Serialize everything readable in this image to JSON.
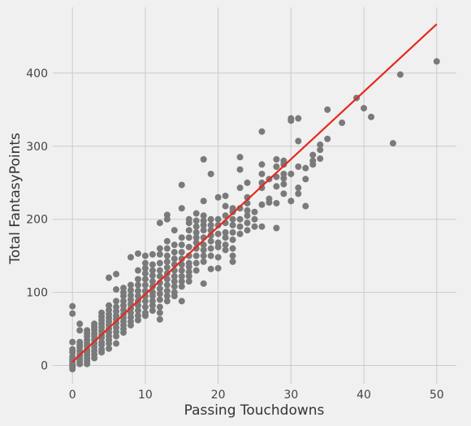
{
  "chart_data": {
    "type": "scatter",
    "title": "",
    "xlabel": "Passing Touchdowns",
    "ylabel": "Total FantasyPoints",
    "xlim": [
      -2.7,
      52.7
    ],
    "ylim": [
      -25,
      490
    ],
    "xticks": [
      0,
      10,
      20,
      30,
      40,
      50
    ],
    "yticks": [
      0,
      100,
      200,
      300,
      400
    ],
    "grid": true,
    "legend": "none",
    "colors": {
      "background": "#f0f0f0",
      "grid": "#cbcbcb",
      "points": "#7a7a7a",
      "fit_line": "#e5281e"
    },
    "fit_line": {
      "x": [
        0,
        50
      ],
      "y": [
        5,
        467
      ]
    },
    "points": [
      [
        0,
        -5
      ],
      [
        0,
        -2
      ],
      [
        0,
        0
      ],
      [
        0,
        2
      ],
      [
        0,
        5
      ],
      [
        0,
        8
      ],
      [
        0,
        12
      ],
      [
        0,
        18
      ],
      [
        0,
        22
      ],
      [
        0,
        32
      ],
      [
        0,
        71
      ],
      [
        0,
        81
      ],
      [
        1,
        2
      ],
      [
        1,
        5
      ],
      [
        1,
        8
      ],
      [
        1,
        12
      ],
      [
        1,
        15
      ],
      [
        1,
        20
      ],
      [
        1,
        25
      ],
      [
        1,
        28
      ],
      [
        1,
        32
      ],
      [
        1,
        48
      ],
      [
        1,
        57
      ],
      [
        2,
        2
      ],
      [
        2,
        6
      ],
      [
        2,
        10
      ],
      [
        2,
        14
      ],
      [
        2,
        18
      ],
      [
        2,
        22
      ],
      [
        2,
        27
      ],
      [
        2,
        31
      ],
      [
        2,
        35
      ],
      [
        2,
        40
      ],
      [
        2,
        44
      ],
      [
        2,
        48
      ],
      [
        3,
        10
      ],
      [
        3,
        15
      ],
      [
        3,
        20
      ],
      [
        3,
        25
      ],
      [
        3,
        30
      ],
      [
        3,
        35
      ],
      [
        3,
        40
      ],
      [
        3,
        44
      ],
      [
        3,
        49
      ],
      [
        3,
        53
      ],
      [
        3,
        57
      ],
      [
        4,
        18
      ],
      [
        4,
        22
      ],
      [
        4,
        28
      ],
      [
        4,
        32
      ],
      [
        4,
        38
      ],
      [
        4,
        42
      ],
      [
        4,
        47
      ],
      [
        4,
        52
      ],
      [
        4,
        57
      ],
      [
        4,
        62
      ],
      [
        4,
        67
      ],
      [
        4,
        72
      ],
      [
        5,
        23
      ],
      [
        5,
        30
      ],
      [
        5,
        35
      ],
      [
        5,
        40
      ],
      [
        5,
        45
      ],
      [
        5,
        50
      ],
      [
        5,
        55
      ],
      [
        5,
        60
      ],
      [
        5,
        65
      ],
      [
        5,
        70
      ],
      [
        5,
        76
      ],
      [
        5,
        82
      ],
      [
        5,
        120
      ],
      [
        6,
        30
      ],
      [
        6,
        40
      ],
      [
        6,
        46
      ],
      [
        6,
        52
      ],
      [
        6,
        58
      ],
      [
        6,
        63
      ],
      [
        6,
        68
      ],
      [
        6,
        74
      ],
      [
        6,
        80
      ],
      [
        6,
        88
      ],
      [
        6,
        104
      ],
      [
        6,
        125
      ],
      [
        7,
        45
      ],
      [
        7,
        50
      ],
      [
        7,
        55
      ],
      [
        7,
        60
      ],
      [
        7,
        65
      ],
      [
        7,
        70
      ],
      [
        7,
        76
      ],
      [
        7,
        82
      ],
      [
        7,
        88
      ],
      [
        7,
        95
      ],
      [
        7,
        100
      ],
      [
        7,
        106
      ],
      [
        8,
        55
      ],
      [
        8,
        60
      ],
      [
        8,
        66
      ],
      [
        8,
        72
      ],
      [
        8,
        78
      ],
      [
        8,
        84
      ],
      [
        8,
        90
      ],
      [
        8,
        96
      ],
      [
        8,
        103
      ],
      [
        8,
        110
      ],
      [
        8,
        148
      ],
      [
        9,
        62
      ],
      [
        9,
        68
      ],
      [
        9,
        75
      ],
      [
        9,
        82
      ],
      [
        9,
        88
      ],
      [
        9,
        95
      ],
      [
        9,
        102
      ],
      [
        9,
        110
      ],
      [
        9,
        118
      ],
      [
        9,
        130
      ],
      [
        9,
        153
      ],
      [
        10,
        68
      ],
      [
        10,
        72
      ],
      [
        10,
        80
      ],
      [
        10,
        88
      ],
      [
        10,
        95
      ],
      [
        10,
        102
      ],
      [
        10,
        110
      ],
      [
        10,
        118
      ],
      [
        10,
        126
      ],
      [
        10,
        133
      ],
      [
        10,
        140
      ],
      [
        10,
        150
      ],
      [
        11,
        75
      ],
      [
        11,
        82
      ],
      [
        11,
        88
      ],
      [
        11,
        95
      ],
      [
        11,
        100
      ],
      [
        11,
        108
      ],
      [
        11,
        115
      ],
      [
        11,
        123
      ],
      [
        11,
        130
      ],
      [
        11,
        138
      ],
      [
        11,
        152
      ],
      [
        12,
        63
      ],
      [
        12,
        72
      ],
      [
        12,
        80
      ],
      [
        12,
        90
      ],
      [
        12,
        98
      ],
      [
        12,
        105
      ],
      [
        12,
        113
      ],
      [
        12,
        122
      ],
      [
        12,
        130
      ],
      [
        12,
        140
      ],
      [
        12,
        152
      ],
      [
        12,
        160
      ],
      [
        12,
        195
      ],
      [
        13,
        88
      ],
      [
        13,
        95
      ],
      [
        13,
        102
      ],
      [
        13,
        110
      ],
      [
        13,
        118
      ],
      [
        13,
        126
      ],
      [
        13,
        134
      ],
      [
        13,
        142
      ],
      [
        13,
        150
      ],
      [
        13,
        160
      ],
      [
        13,
        170
      ],
      [
        13,
        200
      ],
      [
        13,
        206
      ],
      [
        14,
        95
      ],
      [
        14,
        100
      ],
      [
        14,
        108
      ],
      [
        14,
        115
      ],
      [
        14,
        122
      ],
      [
        14,
        130
      ],
      [
        14,
        138
      ],
      [
        14,
        146
      ],
      [
        14,
        155
      ],
      [
        14,
        165
      ],
      [
        14,
        185
      ],
      [
        15,
        88
      ],
      [
        15,
        108
      ],
      [
        15,
        115
      ],
      [
        15,
        122
      ],
      [
        15,
        130
      ],
      [
        15,
        138
      ],
      [
        15,
        146
      ],
      [
        15,
        155
      ],
      [
        15,
        165
      ],
      [
        15,
        175
      ],
      [
        15,
        215
      ],
      [
        15,
        247
      ],
      [
        16,
        115
      ],
      [
        16,
        122
      ],
      [
        16,
        128
      ],
      [
        16,
        135
      ],
      [
        16,
        140
      ],
      [
        16,
        150
      ],
      [
        16,
        162
      ],
      [
        16,
        175
      ],
      [
        16,
        185
      ],
      [
        16,
        195
      ],
      [
        16,
        200
      ],
      [
        17,
        130
      ],
      [
        17,
        140
      ],
      [
        17,
        150
      ],
      [
        17,
        160
      ],
      [
        17,
        168
      ],
      [
        17,
        175
      ],
      [
        17,
        182
      ],
      [
        17,
        190
      ],
      [
        17,
        198
      ],
      [
        17,
        208
      ],
      [
        18,
        112
      ],
      [
        18,
        142
      ],
      [
        18,
        150
      ],
      [
        18,
        158
      ],
      [
        18,
        165
      ],
      [
        18,
        175
      ],
      [
        18,
        185
      ],
      [
        18,
        192
      ],
      [
        18,
        198
      ],
      [
        18,
        205
      ],
      [
        18,
        225
      ],
      [
        18,
        282
      ],
      [
        19,
        132
      ],
      [
        19,
        150
      ],
      [
        19,
        160
      ],
      [
        19,
        170
      ],
      [
        19,
        178
      ],
      [
        19,
        185
      ],
      [
        19,
        192
      ],
      [
        19,
        200
      ],
      [
        19,
        262
      ],
      [
        20,
        133
      ],
      [
        20,
        148
      ],
      [
        20,
        162
      ],
      [
        20,
        168
      ],
      [
        20,
        180
      ],
      [
        20,
        192
      ],
      [
        20,
        200
      ],
      [
        20,
        230
      ],
      [
        21,
        158
      ],
      [
        21,
        165
      ],
      [
        21,
        175
      ],
      [
        21,
        182
      ],
      [
        21,
        195
      ],
      [
        21,
        205
      ],
      [
        21,
        218
      ],
      [
        21,
        232
      ],
      [
        22,
        142
      ],
      [
        22,
        150
      ],
      [
        22,
        160
      ],
      [
        22,
        172
      ],
      [
        22,
        182
      ],
      [
        22,
        192
      ],
      [
        22,
        200
      ],
      [
        22,
        210
      ],
      [
        22,
        215
      ],
      [
        23,
        180
      ],
      [
        23,
        190
      ],
      [
        23,
        200
      ],
      [
        23,
        215
      ],
      [
        23,
        243
      ],
      [
        23,
        268
      ],
      [
        23,
        285
      ],
      [
        24,
        185
      ],
      [
        24,
        195
      ],
      [
        24,
        205
      ],
      [
        24,
        212
      ],
      [
        24,
        222
      ],
      [
        24,
        230
      ],
      [
        24,
        250
      ],
      [
        25,
        190
      ],
      [
        25,
        200
      ],
      [
        25,
        210
      ],
      [
        26,
        190
      ],
      [
        26,
        220
      ],
      [
        26,
        243
      ],
      [
        26,
        250
      ],
      [
        26,
        262
      ],
      [
        26,
        275
      ],
      [
        26,
        320
      ],
      [
        27,
        223
      ],
      [
        27,
        228
      ],
      [
        27,
        255
      ],
      [
        28,
        188
      ],
      [
        28,
        222
      ],
      [
        28,
        245
      ],
      [
        28,
        258
      ],
      [
        28,
        272
      ],
      [
        28,
        282
      ],
      [
        29,
        235
      ],
      [
        29,
        248
      ],
      [
        29,
        256
      ],
      [
        29,
        262
      ],
      [
        29,
        275
      ],
      [
        29,
        280
      ],
      [
        30,
        225
      ],
      [
        30,
        262
      ],
      [
        30,
        335
      ],
      [
        30,
        338
      ],
      [
        31,
        235
      ],
      [
        31,
        243
      ],
      [
        31,
        272
      ],
      [
        31,
        307
      ],
      [
        31,
        338
      ],
      [
        32,
        218
      ],
      [
        32,
        255
      ],
      [
        32,
        270
      ],
      [
        33,
        275
      ],
      [
        33,
        280
      ],
      [
        33,
        288
      ],
      [
        34,
        283
      ],
      [
        34,
        295
      ],
      [
        34,
        302
      ],
      [
        35,
        310
      ],
      [
        35,
        350
      ],
      [
        37,
        332
      ],
      [
        39,
        366
      ],
      [
        40,
        352
      ],
      [
        41,
        340
      ],
      [
        44,
        304
      ],
      [
        45,
        398
      ],
      [
        50,
        416
      ]
    ]
  }
}
